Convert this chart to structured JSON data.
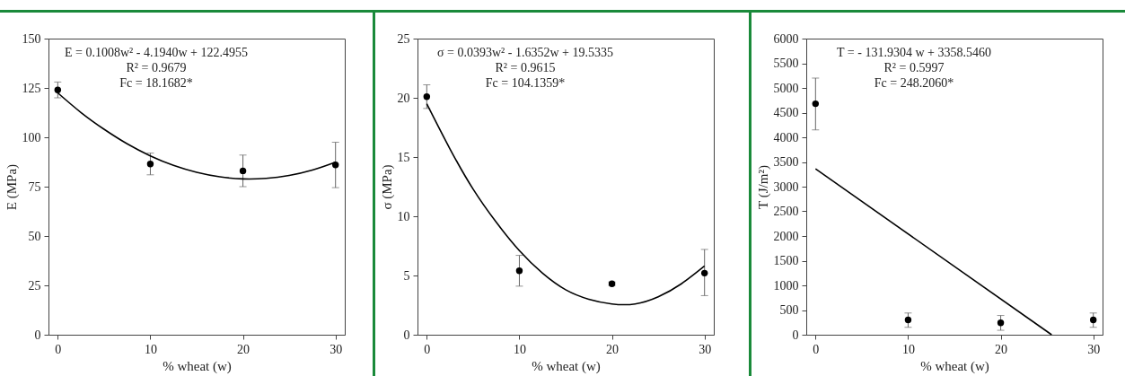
{
  "chart_data": [
    {
      "type": "scatter",
      "xlabel": "% wheat (w)",
      "ylabel": "E (MPa)",
      "x": [
        0,
        10,
        20,
        30
      ],
      "xlim": [
        -1,
        31
      ],
      "xticks": [
        0,
        10,
        20,
        30
      ],
      "ylim": [
        0,
        150
      ],
      "yticks": [
        0,
        25,
        50,
        75,
        100,
        125,
        150
      ],
      "annotations": [
        "E = 0.1008w² - 4.1940w + 122.4955",
        "R² = 0.9679",
        "Fc = 18.1682*"
      ],
      "series": [
        {
          "type": "scatter",
          "marker": "circle",
          "color": "#000000",
          "values": [
            124,
            86.5,
            83,
            86
          ],
          "errors": [
            [
              120,
              128
            ],
            [
              81,
              92
            ],
            [
              75,
              91
            ],
            [
              74.5,
              97.5
            ]
          ]
        },
        {
          "type": "line",
          "color": "#000000",
          "x": [
            0,
            2.5,
            5,
            7.5,
            10,
            12.5,
            15,
            17.5,
            20,
            22.5,
            25,
            27.5,
            30
          ],
          "values": [
            122.5,
            112.6,
            104.1,
            96.7,
            90.6,
            85.8,
            82.3,
            80.0,
            78.9,
            79.2,
            80.7,
            83.4,
            87.4
          ]
        }
      ]
    },
    {
      "type": "scatter",
      "xlabel": "% wheat (w)",
      "ylabel": "σ (MPa)",
      "x": [
        0,
        10,
        20,
        30
      ],
      "xlim": [
        -1,
        31
      ],
      "xticks": [
        0,
        10,
        20,
        30
      ],
      "ylim": [
        0,
        25
      ],
      "yticks": [
        0,
        5,
        10,
        15,
        20,
        25
      ],
      "annotations": [
        "σ = 0.0393w² - 1.6352w + 19.5335",
        "R² = 0.9615",
        "Fc = 104.1359*"
      ],
      "series": [
        {
          "type": "scatter",
          "marker": "circle",
          "color": "#000000",
          "values": [
            20.1,
            5.4,
            4.3,
            5.2
          ],
          "errors": [
            [
              19.1,
              21.1
            ],
            [
              4.1,
              6.7
            ],
            [
              4.15,
              4.45
            ],
            [
              3.3,
              7.2
            ]
          ]
        },
        {
          "type": "line",
          "color": "#000000",
          "x": [
            0,
            2.5,
            5,
            7.5,
            10,
            12.5,
            15,
            17.5,
            20,
            22.5,
            25,
            27.5,
            30
          ],
          "values": [
            19.5,
            15.7,
            12.3,
            9.5,
            7.1,
            5.2,
            3.8,
            3.0,
            2.6,
            2.6,
            3.2,
            4.3,
            5.8
          ]
        }
      ]
    },
    {
      "type": "scatter",
      "xlabel": "% wheat (w)",
      "ylabel": "T (J/m²)",
      "x": [
        0,
        10,
        20,
        30
      ],
      "xlim": [
        -1,
        31
      ],
      "xticks": [
        0,
        10,
        20,
        30
      ],
      "ylim": [
        0,
        6000
      ],
      "yticks": [
        0,
        500,
        1000,
        1500,
        2000,
        2500,
        3000,
        3500,
        4000,
        4500,
        5000,
        5500,
        6000
      ],
      "annotations": [
        "T = - 131.9304 w + 3358.5460",
        "R² = 0.5997",
        "Fc = 248.2060*"
      ],
      "series": [
        {
          "type": "scatter",
          "marker": "circle",
          "color": "#000000",
          "values": [
            4680,
            300,
            240,
            300
          ],
          "errors": [
            [
              4150,
              5200
            ],
            [
              150,
              440
            ],
            [
              90,
              390
            ],
            [
              150,
              440
            ]
          ]
        },
        {
          "type": "line",
          "color": "#000000",
          "x": [
            0,
            25.5
          ],
          "values": [
            3360,
            0
          ]
        }
      ]
    }
  ]
}
